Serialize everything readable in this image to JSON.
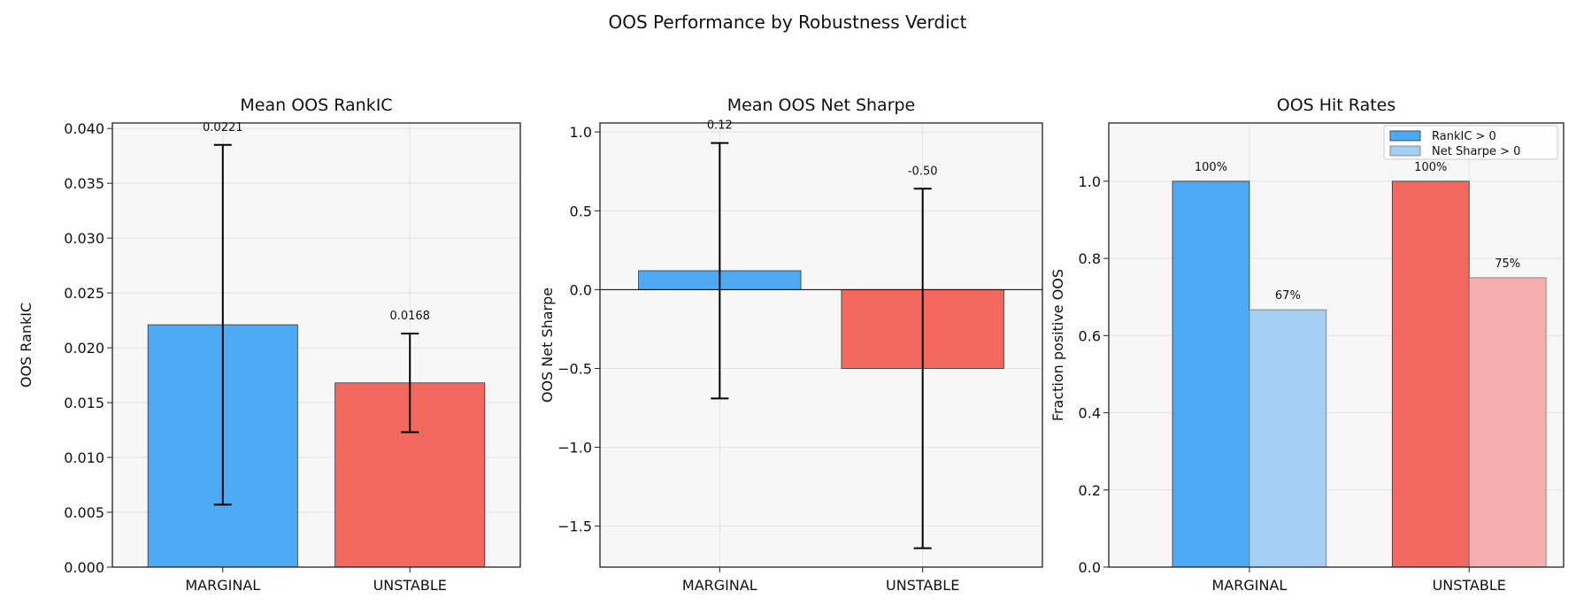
{
  "suptitle": "OOS Performance by Robustness Verdict",
  "colors": {
    "marginal": "#4DA9F2",
    "marginal_light": "#A3CFF5",
    "unstable": "#F2685F",
    "unstable_light": "#F5AEAB",
    "axes_bg": "#F7F7F7",
    "grid": "#E3E3E3"
  },
  "chart_data": [
    {
      "type": "bar",
      "title": "Mean OOS RankIC",
      "ylabel": "OOS RankIC",
      "xlabel": "",
      "categories": [
        "MARGINAL",
        "UNSTABLE"
      ],
      "values": [
        0.0221,
        0.0168
      ],
      "errors": [
        0.0164,
        0.0045
      ],
      "data_labels": [
        "0.0221",
        "0.0168"
      ],
      "ylim": [
        0,
        0.0405
      ],
      "yticks": [
        0.0,
        0.005,
        0.01,
        0.015,
        0.02,
        0.025,
        0.03,
        0.035,
        0.04
      ],
      "ytick_labels": [
        "0.000",
        "0.005",
        "0.010",
        "0.015",
        "0.020",
        "0.025",
        "0.030",
        "0.035",
        "0.040"
      ],
      "grid": true
    },
    {
      "type": "bar",
      "title": "Mean OOS Net Sharpe",
      "ylabel": "OOS Net Sharpe",
      "xlabel": "",
      "categories": [
        "MARGINAL",
        "UNSTABLE"
      ],
      "values": [
        0.12,
        -0.5
      ],
      "errors": [
        0.81,
        1.14
      ],
      "data_labels": [
        "0.12",
        "-0.50"
      ],
      "ylim": [
        -1.76,
        1.057
      ],
      "yticks": [
        -1.5,
        -1.0,
        -0.5,
        0.0,
        0.5,
        1.0
      ],
      "ytick_labels": [
        "−1.5",
        "−1.0",
        "−0.5",
        "0.0",
        "0.5",
        "1.0"
      ],
      "zero_line": true,
      "grid": true
    },
    {
      "type": "bar",
      "title": "OOS Hit Rates",
      "ylabel": "Fraction positive OOS",
      "xlabel": "",
      "categories": [
        "MARGINAL",
        "UNSTABLE"
      ],
      "series": [
        {
          "name": "RankIC > 0",
          "values": [
            1.0,
            1.0
          ],
          "data_labels": [
            "100%",
            "100%"
          ]
        },
        {
          "name": "Net Sharpe > 0",
          "values": [
            0.667,
            0.75
          ],
          "data_labels": [
            "67%",
            "75%"
          ]
        }
      ],
      "ylim": [
        0,
        1.151
      ],
      "yticks": [
        0.0,
        0.2,
        0.4,
        0.6,
        0.8,
        1.0
      ],
      "ytick_labels": [
        "0.0",
        "0.2",
        "0.4",
        "0.6",
        "0.8",
        "1.0"
      ],
      "legend": "top-right",
      "grid": true
    }
  ]
}
